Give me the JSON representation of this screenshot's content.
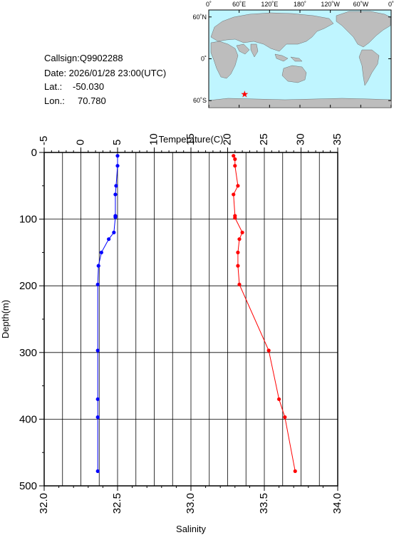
{
  "info": {
    "callsign": "Callsign:Q9902288",
    "date": "Date:  2026/01/28 23:00(UTC)",
    "lat_label": "Lat.:",
    "lat_value": "-50.030",
    "lon_label": "Lon.:",
    "lon_value": "70.780"
  },
  "map": {
    "top_labels": [
      "0˚",
      "60˚E",
      "120˚E",
      "180˚",
      "120˚W",
      "60˚W",
      "0˚"
    ],
    "left_labels": [
      "60˚N",
      "0˚",
      "60˚S"
    ],
    "ocean_color": "#bff5ff",
    "land_color": "#bdbdbd",
    "marker_color": "#ff0000",
    "float_lon": 70.78,
    "float_lat": -50.03
  },
  "chart_data": {
    "type": "line",
    "title": "",
    "top_axis_label": "Temperature(C)",
    "bottom_axis_label": "Salinity",
    "ylabel": "Depth(m)",
    "depth_lim": [
      0,
      500
    ],
    "temp_lim": [
      -5,
      35
    ],
    "sal_lim": [
      32.0,
      34.0
    ],
    "depth_ticks": [
      "0",
      "100",
      "200",
      "300",
      "400",
      "500"
    ],
    "temp_ticks": [
      "-5",
      "0",
      "5",
      "10",
      "15",
      "20",
      "25",
      "30",
      "35"
    ],
    "sal_ticks": [
      "32.0",
      "32.5",
      "33.0",
      "33.5",
      "34.0"
    ],
    "grid": true,
    "series": [
      {
        "name": "Temperature",
        "axis": "top",
        "color": "#0000ff",
        "points": [
          [
            5.0,
            5
          ],
          [
            5.0,
            20
          ],
          [
            4.8,
            50
          ],
          [
            4.7,
            63
          ],
          [
            4.7,
            95
          ],
          [
            4.7,
            97
          ],
          [
            4.5,
            120
          ],
          [
            3.8,
            130
          ],
          [
            2.8,
            150
          ],
          [
            2.4,
            170
          ],
          [
            2.3,
            198
          ],
          [
            2.3,
            297
          ],
          [
            2.3,
            370
          ],
          [
            2.3,
            397
          ],
          [
            2.3,
            478
          ]
        ]
      },
      {
        "name": "Salinity",
        "axis": "bottom",
        "color": "#ff0000",
        "points": [
          [
            33.29,
            5
          ],
          [
            33.3,
            10
          ],
          [
            33.3,
            20
          ],
          [
            33.32,
            50
          ],
          [
            33.29,
            63
          ],
          [
            33.3,
            95
          ],
          [
            33.3,
            98
          ],
          [
            33.35,
            120
          ],
          [
            33.33,
            130
          ],
          [
            33.32,
            150
          ],
          [
            33.32,
            170
          ],
          [
            33.33,
            198
          ],
          [
            33.53,
            297
          ],
          [
            33.6,
            370
          ],
          [
            33.64,
            397
          ],
          [
            33.71,
            478
          ]
        ]
      }
    ]
  }
}
